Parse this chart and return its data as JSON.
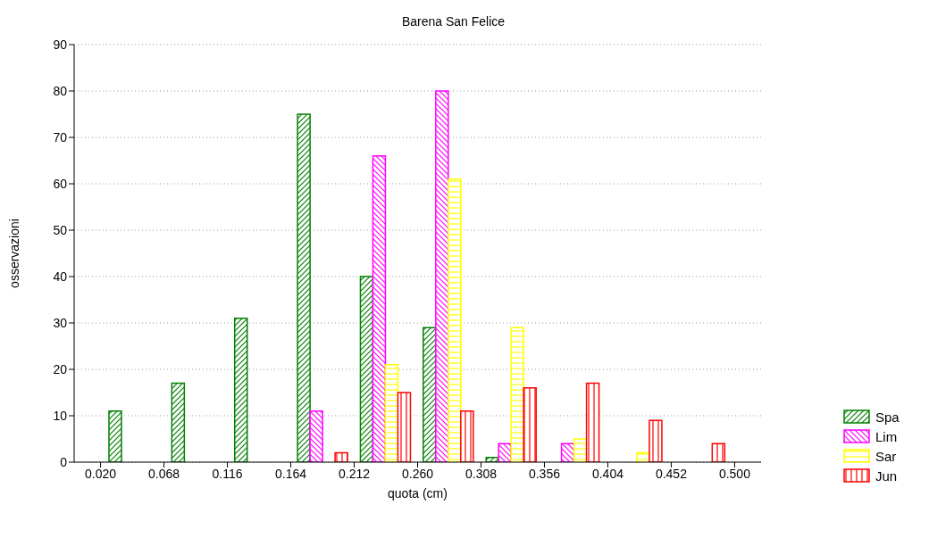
{
  "chart_data": {
    "type": "histogram",
    "title": "Barena San Felice",
    "xlabel": "quota (cm)",
    "ylabel": "osservazioni",
    "bins": [
      0.02,
      0.068,
      0.116,
      0.164,
      0.212,
      0.26,
      0.308,
      0.356,
      0.404,
      0.452,
      0.5
    ],
    "xlim": [
      0,
      0.52
    ],
    "xticks": [
      {
        "value": 0.02,
        "label": "0.020"
      },
      {
        "value": 0.068,
        "label": "0.068"
      },
      {
        "value": 0.116,
        "label": "0.116"
      },
      {
        "value": 0.164,
        "label": "0.164"
      },
      {
        "value": 0.212,
        "label": "0.212"
      },
      {
        "value": 0.26,
        "label": "0.260"
      },
      {
        "value": 0.308,
        "label": "0.308"
      },
      {
        "value": 0.356,
        "label": "0.356"
      },
      {
        "value": 0.404,
        "label": "0.404"
      },
      {
        "value": 0.452,
        "label": "0.452"
      },
      {
        "value": 0.5,
        "label": "0.500"
      }
    ],
    "ylim": [
      0,
      90
    ],
    "yticks": [
      0,
      10,
      20,
      30,
      40,
      50,
      60,
      70,
      80,
      90
    ],
    "grid": "y",
    "legend": "bottom right",
    "series": [
      {
        "name": "Spa",
        "color": "#008000",
        "values": [
          11,
          17,
          31,
          75,
          40,
          29,
          1,
          0,
          0,
          0
        ]
      },
      {
        "name": "Lim",
        "color": "#ff00ff",
        "values": [
          0,
          0,
          0,
          11,
          66,
          80,
          4,
          4,
          0,
          0
        ]
      },
      {
        "name": "Sar",
        "color": "#ffff00",
        "values": [
          0,
          0,
          0,
          0,
          21,
          61,
          29,
          5,
          2,
          0
        ]
      },
      {
        "name": "Jun",
        "color": "#ff0000",
        "values": [
          0,
          0,
          0,
          2,
          15,
          11,
          16,
          17,
          9,
          4
        ]
      }
    ]
  }
}
